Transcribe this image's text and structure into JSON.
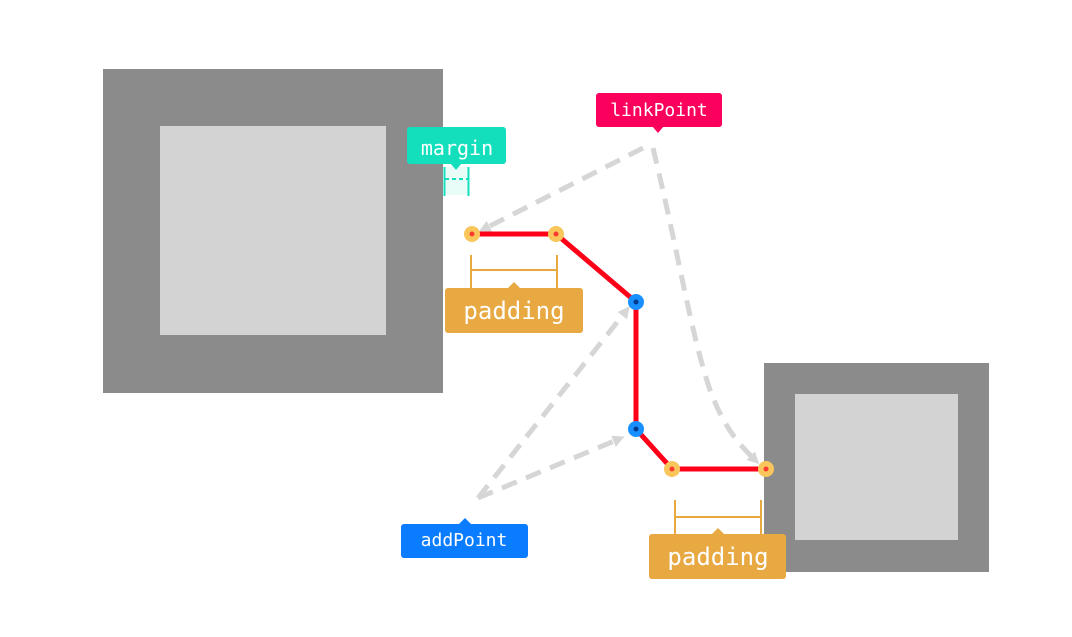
{
  "labels": {
    "margin": "margin",
    "link_point": "linkPoint",
    "padding_top": "padding",
    "add_point": "addPoint",
    "padding_bottom": "padding"
  },
  "colors": {
    "node_outer": "#8b8b8b",
    "node_inner": "#d3d3d3",
    "link_line": "#ff0019",
    "link_point": "#fb005c",
    "add_point": "#0a7cff",
    "margin": "#13dfbd",
    "padding": "#e8a842",
    "arrow": "#d6d6d6",
    "endpoint_dot": "#f8c65a",
    "endpoint_center": "#ff3b2f",
    "add_dot": "#1890ff",
    "add_center": "#003a8c"
  }
}
